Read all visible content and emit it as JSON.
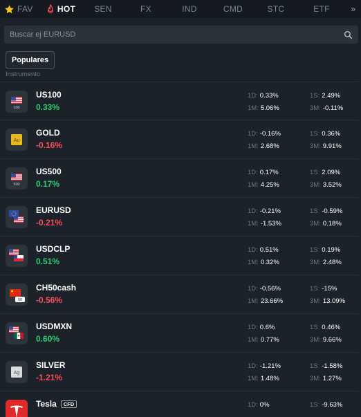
{
  "tabs": [
    {
      "label": "FAV",
      "icon": "star-icon"
    },
    {
      "label": "HOT",
      "icon": "flame-icon",
      "active": true
    },
    {
      "label": "SEN"
    },
    {
      "label": "FX"
    },
    {
      "label": "IND"
    },
    {
      "label": "CMD"
    },
    {
      "label": "STC"
    },
    {
      "label": "ETF"
    },
    {
      "label": "»",
      "icon": "double-chevron-right-icon"
    }
  ],
  "search": {
    "placeholder": "Buscar ej EURUSD",
    "icon": "search-icon"
  },
  "filter": {
    "label": "Populares"
  },
  "column_label": "Instrumento",
  "stat_keys": {
    "d1": "1D:",
    "m1": "1M:",
    "s1": "1S:",
    "m3": "3M:"
  },
  "instruments": [
    {
      "symbol": "US100",
      "change": "0.33%",
      "d1": "0.33%",
      "m1": "5.06%",
      "s1": "2.49%",
      "m3": "-0.11%",
      "flag_text": "100"
    },
    {
      "symbol": "GOLD",
      "change": "-0.16%",
      "d1": "-0.16%",
      "m1": "2.68%",
      "s1": "0.36%",
      "m3": "9.91%",
      "flag_text": "Au"
    },
    {
      "symbol": "US500",
      "change": "0.17%",
      "d1": "0.17%",
      "m1": "4.25%",
      "s1": "2.09%",
      "m3": "3.52%",
      "flag_text": "500"
    },
    {
      "symbol": "EURUSD",
      "change": "-0.21%",
      "d1": "-0.21%",
      "m1": "-1.53%",
      "s1": "-0.59%",
      "m3": "0.18%"
    },
    {
      "symbol": "USDCLP",
      "change": "0.51%",
      "d1": "0.51%",
      "m1": "0.32%",
      "s1": "0.19%",
      "m3": "2.48%"
    },
    {
      "symbol": "CH50cash",
      "change": "-0.56%",
      "d1": "-0.56%",
      "m1": "23.66%",
      "s1": "-15%",
      "m3": "13.09%",
      "flag_text": "50"
    },
    {
      "symbol": "USDMXN",
      "change": "0.60%",
      "d1": "0.6%",
      "m1": "0.77%",
      "s1": "0.46%",
      "m3": "9.66%"
    },
    {
      "symbol": "SILVER",
      "change": "-1.21%",
      "d1": "-1.21%",
      "m1": "1.48%",
      "s1": "-1.58%",
      "m3": "1.27%",
      "flag_text": "Ag"
    },
    {
      "symbol": "Tesla",
      "badge": "CFD",
      "change": "",
      "d1": "0%",
      "m1": "",
      "s1": "-9.63%",
      "m3": ""
    }
  ],
  "colors": {
    "positive": "#2ecc71",
    "negative": "#ff4d5a",
    "accent_star": "#f5c518",
    "accent_flame": "#ff4d5a"
  }
}
